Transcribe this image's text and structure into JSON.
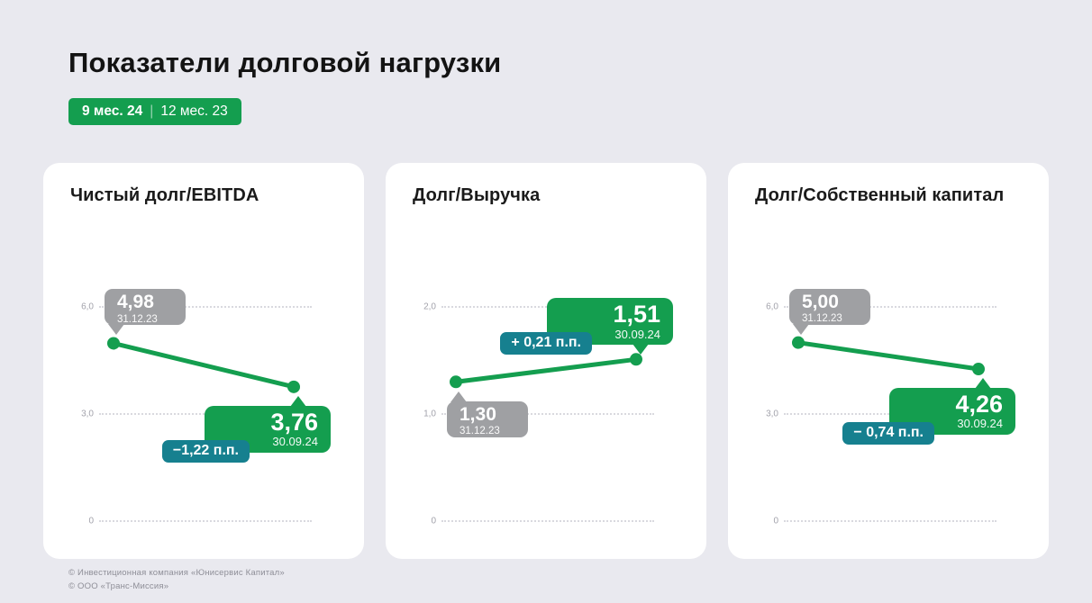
{
  "page": {
    "title": "Показатели долговой нагрузки",
    "period_badge": {
      "current": "9 мес. 24",
      "separator": "|",
      "previous": "12 мес. 23"
    },
    "footer": [
      "© Инвестиционная компания «Юнисервис Капитал»",
      "© ООО «Транс-Миссия»"
    ]
  },
  "colors": {
    "green": "#149e4f",
    "teal": "#16808f",
    "gray_bubble": "#9fa0a3",
    "background": "#e9e9ef",
    "card": "#ffffff",
    "grid": "#d9d9df",
    "tick_text": "#a2a2ab"
  },
  "chart_data": [
    {
      "type": "line",
      "title": "Чистый долг/EBITDA",
      "x": [
        "31.12.23",
        "30.09.24"
      ],
      "values": [
        4.98,
        3.76
      ],
      "value_labels": [
        "4,98",
        "3,76"
      ],
      "delta_label": "−1,22 п.п.",
      "yticks": [
        {
          "label": "6,0",
          "value": 6
        },
        {
          "label": "3,0",
          "value": 3
        },
        {
          "label": "0",
          "value": 0
        }
      ],
      "ylim": [
        0,
        6
      ],
      "grid": "dotted",
      "start_bubble": "above",
      "end_bubble": "below"
    },
    {
      "type": "line",
      "title": "Долг/Выручка",
      "x": [
        "31.12.23",
        "30.09.24"
      ],
      "values": [
        1.3,
        1.51
      ],
      "value_labels": [
        "1,30",
        "1,51"
      ],
      "delta_label": "+ 0,21 п.п.",
      "yticks": [
        {
          "label": "2,0",
          "value": 2
        },
        {
          "label": "1,0",
          "value": 1
        },
        {
          "label": "0",
          "value": 0
        }
      ],
      "ylim": [
        0,
        2
      ],
      "grid": "dotted",
      "start_bubble": "below",
      "end_bubble": "above"
    },
    {
      "type": "line",
      "title": "Долг/Собственный капитал",
      "x": [
        "31.12.23",
        "30.09.24"
      ],
      "values": [
        5.0,
        4.26
      ],
      "value_labels": [
        "5,00",
        "4,26"
      ],
      "delta_label": "− 0,74 п.п.",
      "yticks": [
        {
          "label": "6,0",
          "value": 6
        },
        {
          "label": "3,0",
          "value": 3
        },
        {
          "label": "0",
          "value": 0
        }
      ],
      "ylim": [
        0,
        6
      ],
      "grid": "dotted",
      "start_bubble": "above",
      "end_bubble": "below"
    }
  ]
}
